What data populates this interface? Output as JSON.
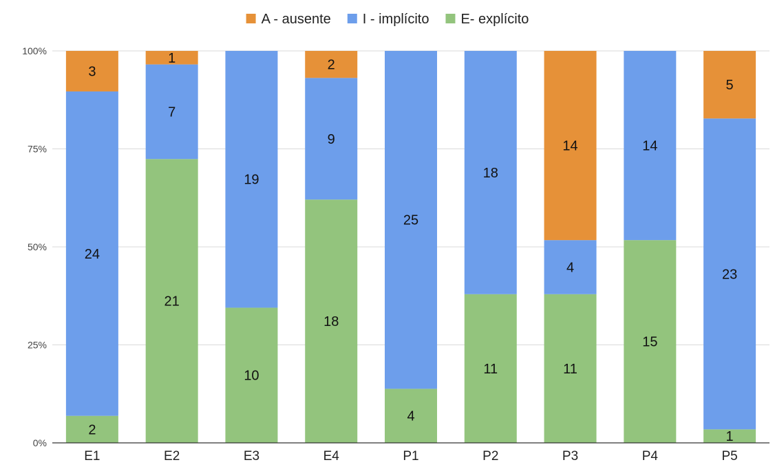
{
  "chart_data": {
    "type": "bar",
    "stacked": "percent",
    "title": "",
    "xlabel": "",
    "ylabel": "",
    "categories": [
      "E1",
      "E2",
      "E3",
      "E4",
      "P1",
      "P2",
      "P3",
      "P4",
      "P5"
    ],
    "y_ticks": [
      "0%",
      "25%",
      "50%",
      "75%",
      "100%"
    ],
    "ylim": [
      0,
      100
    ],
    "grid": true,
    "legend_position": "top-center",
    "series": [
      {
        "name": "E- explícito",
        "color": "#93c47d",
        "values": [
          2,
          21,
          10,
          18,
          4,
          11,
          11,
          15,
          1
        ]
      },
      {
        "name": "I - implícito",
        "color": "#6d9eeb",
        "values": [
          24,
          7,
          19,
          9,
          25,
          18,
          4,
          14,
          23
        ]
      },
      {
        "name": "A - ausente",
        "color": "#e69138",
        "values": [
          3,
          1,
          0,
          2,
          0,
          0,
          14,
          0,
          5
        ]
      }
    ],
    "legend_order": [
      "A - ausente",
      "I - implícito",
      "E- explícito"
    ]
  }
}
